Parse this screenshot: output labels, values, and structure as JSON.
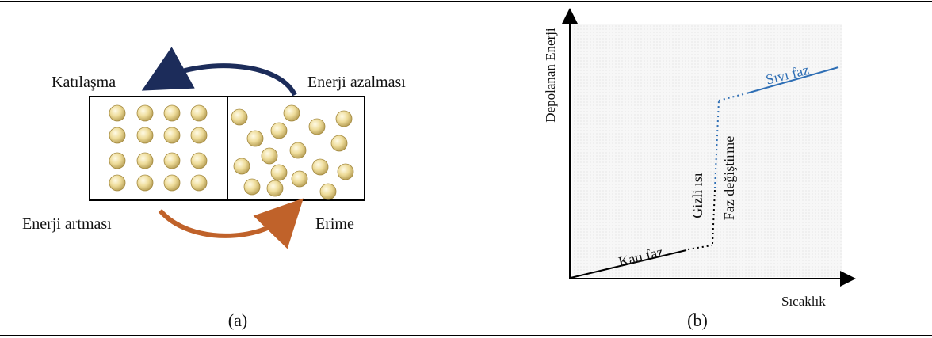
{
  "panel_a": {
    "labels": {
      "top_left": "Katılaşma",
      "top_right": "Enerji azalması",
      "bottom_left": "Enerji artması",
      "bottom_right": "Erime"
    },
    "caption": "(a)"
  },
  "panel_b": {
    "y_axis_label": "Depolanan Enerji",
    "x_axis_label": "Sıcaklık",
    "solid_phase": "Katı faz",
    "latent_heat": "Gizli ısı",
    "phase_change": "Faz değiştirme",
    "liquid_phase": "Sıvı faz",
    "caption": "(b)"
  }
}
